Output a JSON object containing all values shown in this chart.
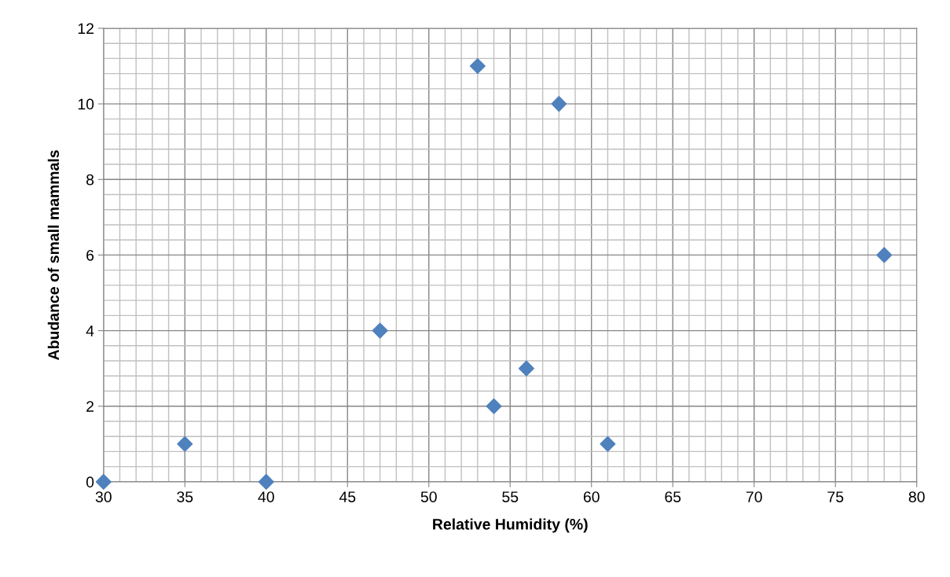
{
  "chart_data": {
    "type": "scatter",
    "xlabel": "Relative Humidity (%)",
    "ylabel": "Abudance of small mammals",
    "series": [
      {
        "color": "#4f81bd",
        "x": [
          30,
          35,
          40,
          47,
          53,
          54,
          56,
          58,
          61,
          78
        ],
        "values": [
          0,
          1,
          0,
          4,
          11,
          2,
          3,
          10,
          1,
          6
        ]
      }
    ],
    "xlim": [
      30,
      80
    ],
    "xticks": [
      30,
      35,
      40,
      45,
      50,
      55,
      60,
      65,
      70,
      75,
      80
    ],
    "ylim": [
      0,
      12
    ],
    "yticks": [
      0,
      2,
      4,
      6,
      8,
      10,
      12
    ],
    "grid": true,
    "marker": "diamond"
  }
}
